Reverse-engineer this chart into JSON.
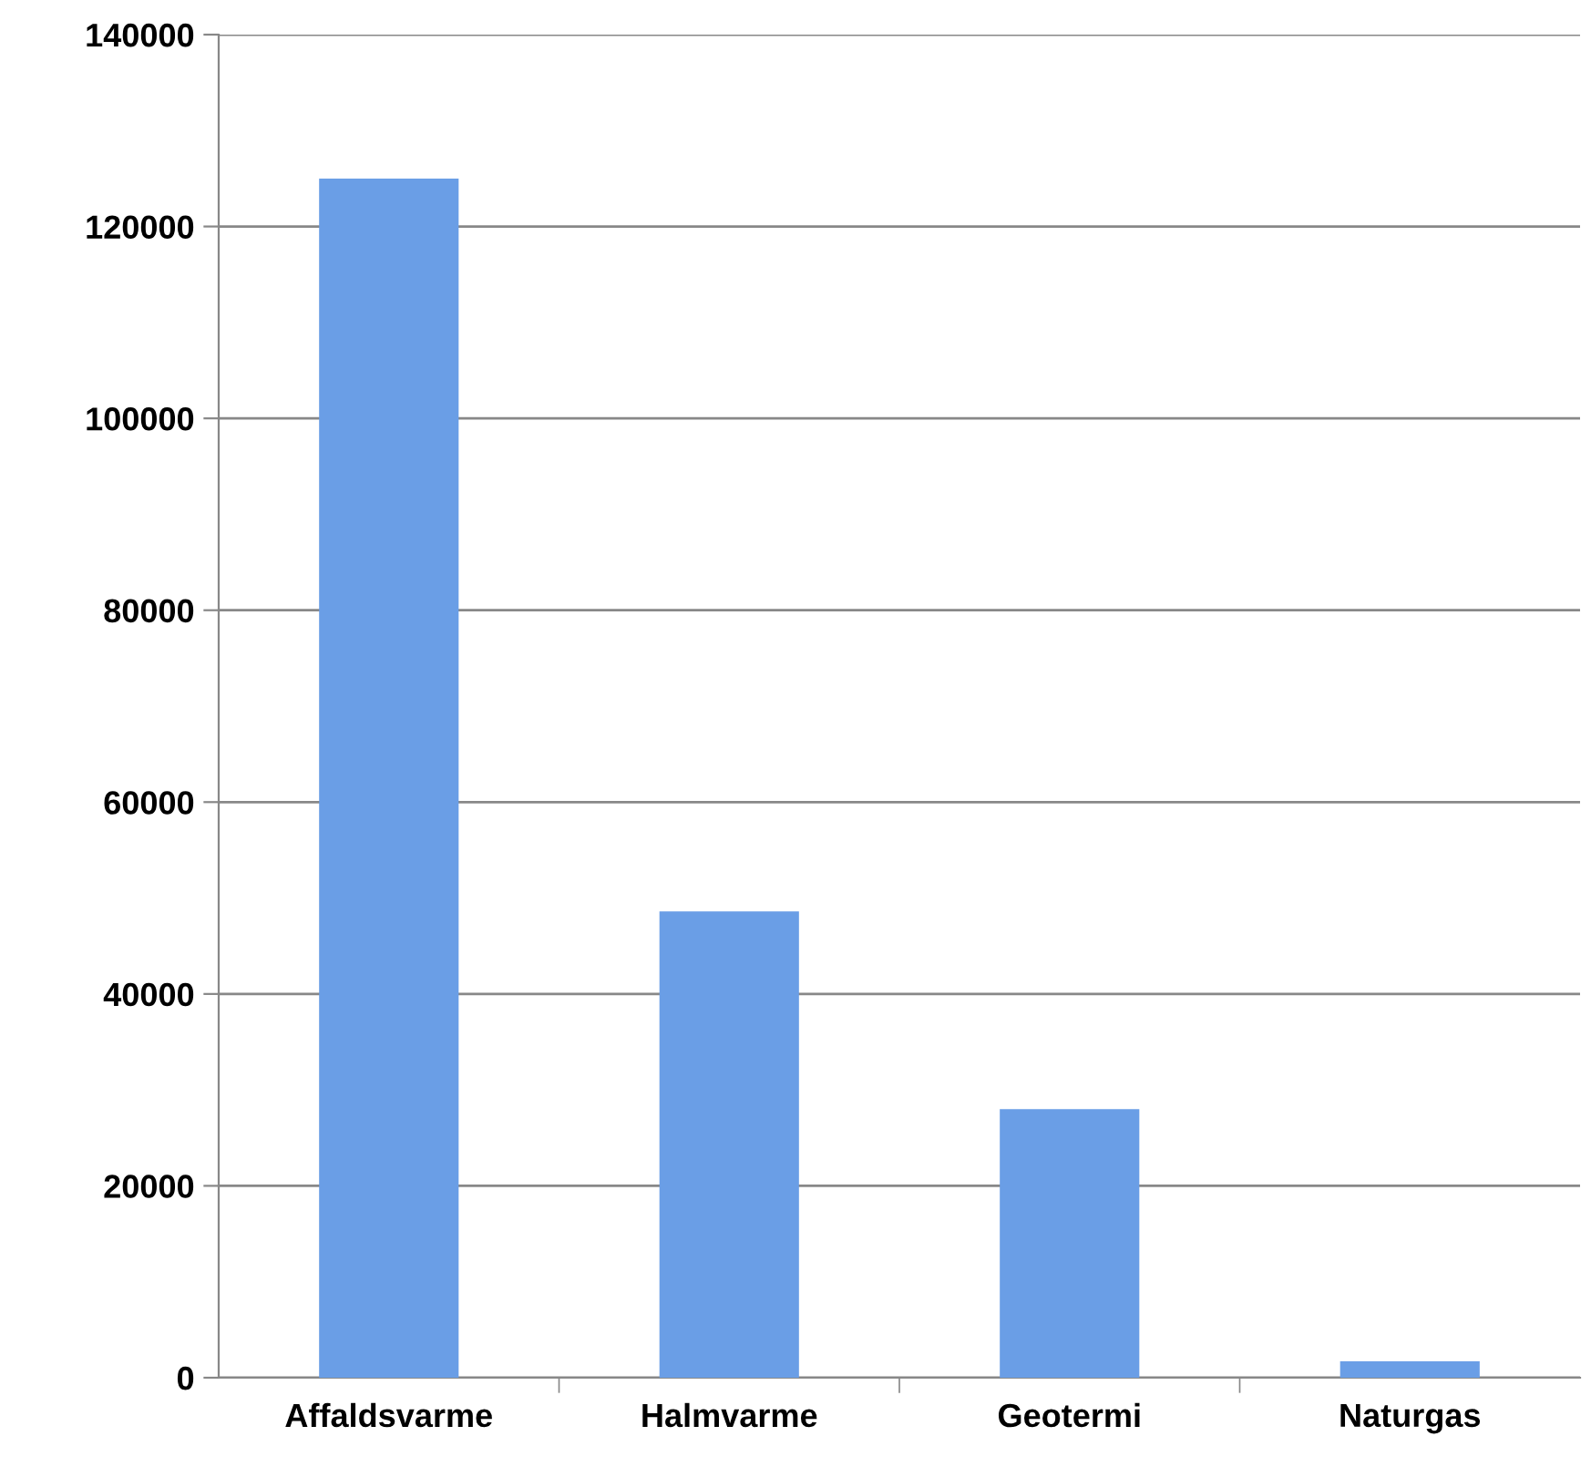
{
  "chart_data": {
    "type": "bar",
    "categories": [
      "Affaldsvarme",
      "Halmvarme",
      "Geotermi",
      "Naturgas"
    ],
    "values": [
      125000,
      48600,
      28000,
      1700
    ],
    "color": "#6a9ee6",
    "ylim": [
      0,
      140000
    ],
    "yticks": [
      0,
      20000,
      40000,
      60000,
      80000,
      100000,
      120000,
      140000
    ],
    "grid": "y"
  }
}
